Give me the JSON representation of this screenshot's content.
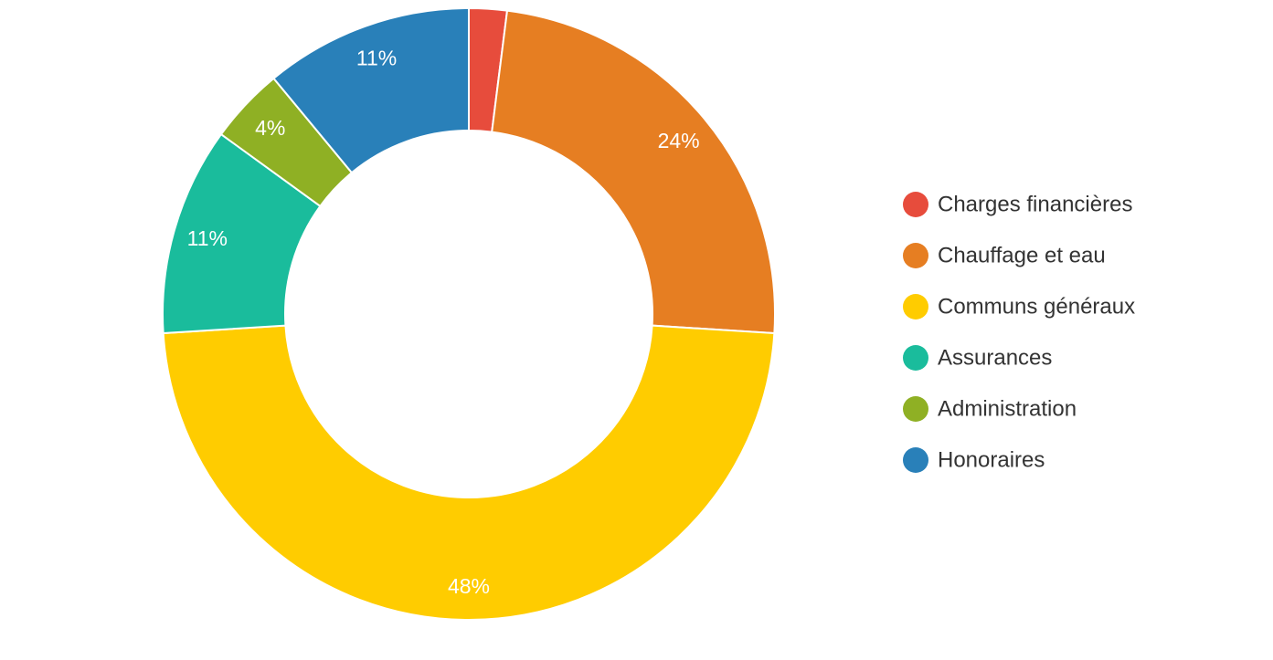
{
  "chart_data": {
    "type": "pie",
    "variant": "donut",
    "legend_position": "right",
    "slices": [
      {
        "label": "Charges financières",
        "value": 2,
        "display": "",
        "color": "#e74c3c"
      },
      {
        "label": "Chauffage et eau",
        "value": 24,
        "display": "24%",
        "color": "#e67e22"
      },
      {
        "label": "Communs généraux",
        "value": 48,
        "display": "48%",
        "color": "#ffcc00"
      },
      {
        "label": "Assurances",
        "value": 11,
        "display": "11%",
        "color": "#1abc9c"
      },
      {
        "label": "Administration",
        "value": 4,
        "display": "4%",
        "color": "#8fb024"
      },
      {
        "label": "Honoraires",
        "value": 11,
        "display": "11%",
        "color": "#2980b9"
      }
    ]
  }
}
